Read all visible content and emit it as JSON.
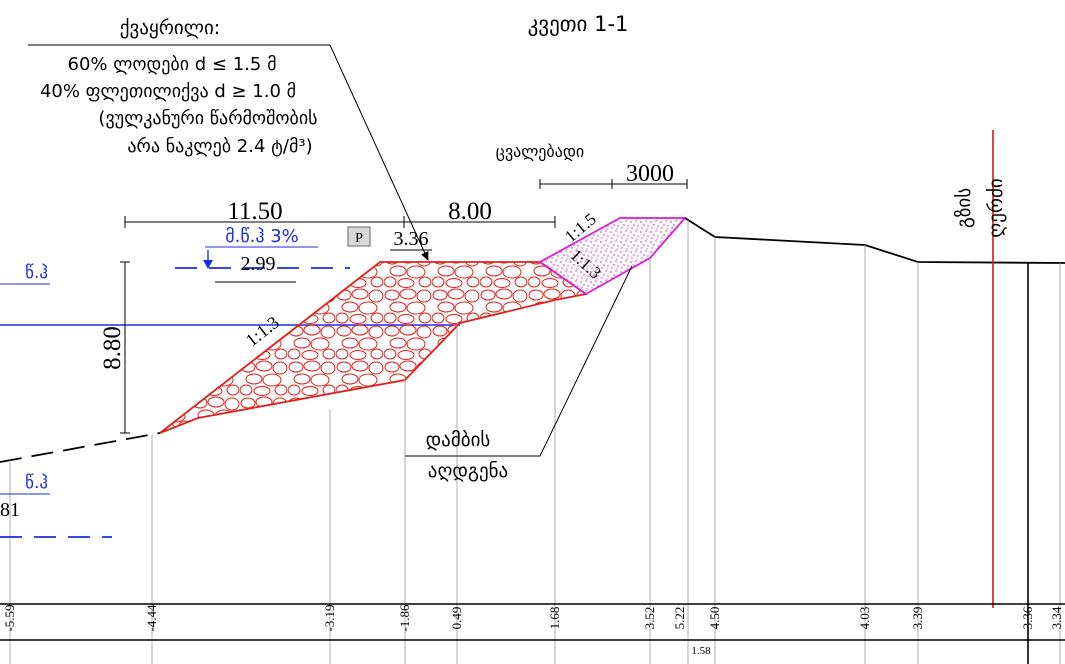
{
  "title": "კვეთი 1-1",
  "fill_note": {
    "title": "ქვაყრილი:",
    "line1": "60% ლოდები d ≤ 1.5 მ",
    "line2": "40% ფლეთილიქვა d ≥ 1.0 მ",
    "line3": "(ვულკანური წარმოშობის",
    "line4": "არა ნაკლებ 2.4 ტ/მ³)"
  },
  "variable_label": "ცვალებადი",
  "dimensions": {
    "crest_left": "11.50",
    "crest_right": "8.00",
    "height": "8.80",
    "variable_width": "3000"
  },
  "water_level": {
    "label": "მ.წ.ჰ 3%",
    "value": "2.99"
  },
  "crest": {
    "marker": "P",
    "elevation": "3.36"
  },
  "slopes": {
    "dam_left": "1:1.3",
    "restore_top": "1:1.5",
    "restore_bottom": "1:1.3"
  },
  "axis_label": {
    "line1": "გზის",
    "line2": "ღერძი"
  },
  "restoration_label": {
    "line1": "დამბის",
    "line2": "აღდგენა"
  },
  "left_edge": {
    "upper_label": "წ.ჰ",
    "lower_label": "წ.ჰ",
    "lower_value": "81"
  },
  "bottom_elevations": [
    "-5.59",
    "-4.44",
    "-3.19",
    "-1.86",
    "0.49",
    "1.68",
    "3.52",
    "5.22",
    "4.50",
    "4.03",
    "3.39",
    "3.36",
    "3.34"
  ],
  "bottom_small_value": "1.58",
  "colors": {
    "dam_stone": "#e0201a",
    "restoration_fill": "#d81fd6",
    "water_line": "#1a2fe0",
    "road_axis": "#e8101a",
    "ground": "#000000"
  }
}
